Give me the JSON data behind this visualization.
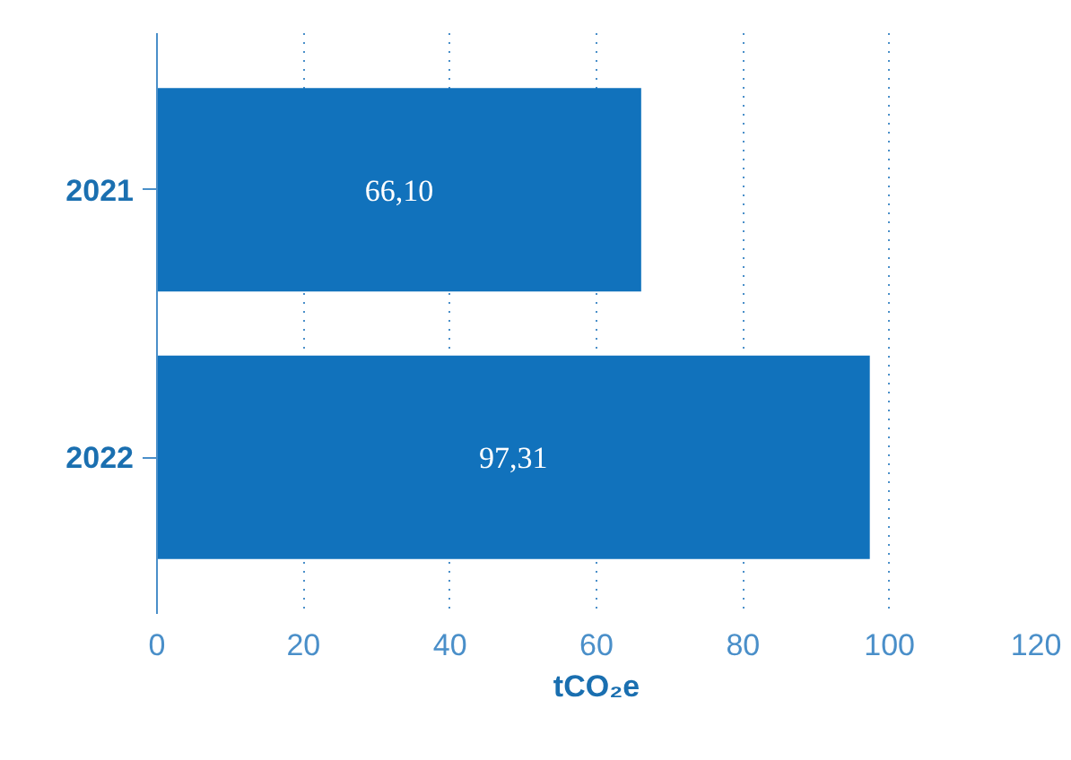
{
  "chart_data": {
    "type": "bar",
    "orientation": "horizontal",
    "categories": [
      "2021",
      "2022"
    ],
    "values": [
      66.1,
      97.31
    ],
    "value_labels": [
      "66,10",
      "97,31"
    ],
    "color": "#1172bc",
    "xlabel": "tCO₂e",
    "xlim": [
      0,
      120
    ],
    "xticks": [
      0,
      20,
      40,
      60,
      80,
      100,
      120
    ],
    "grid": "x"
  }
}
